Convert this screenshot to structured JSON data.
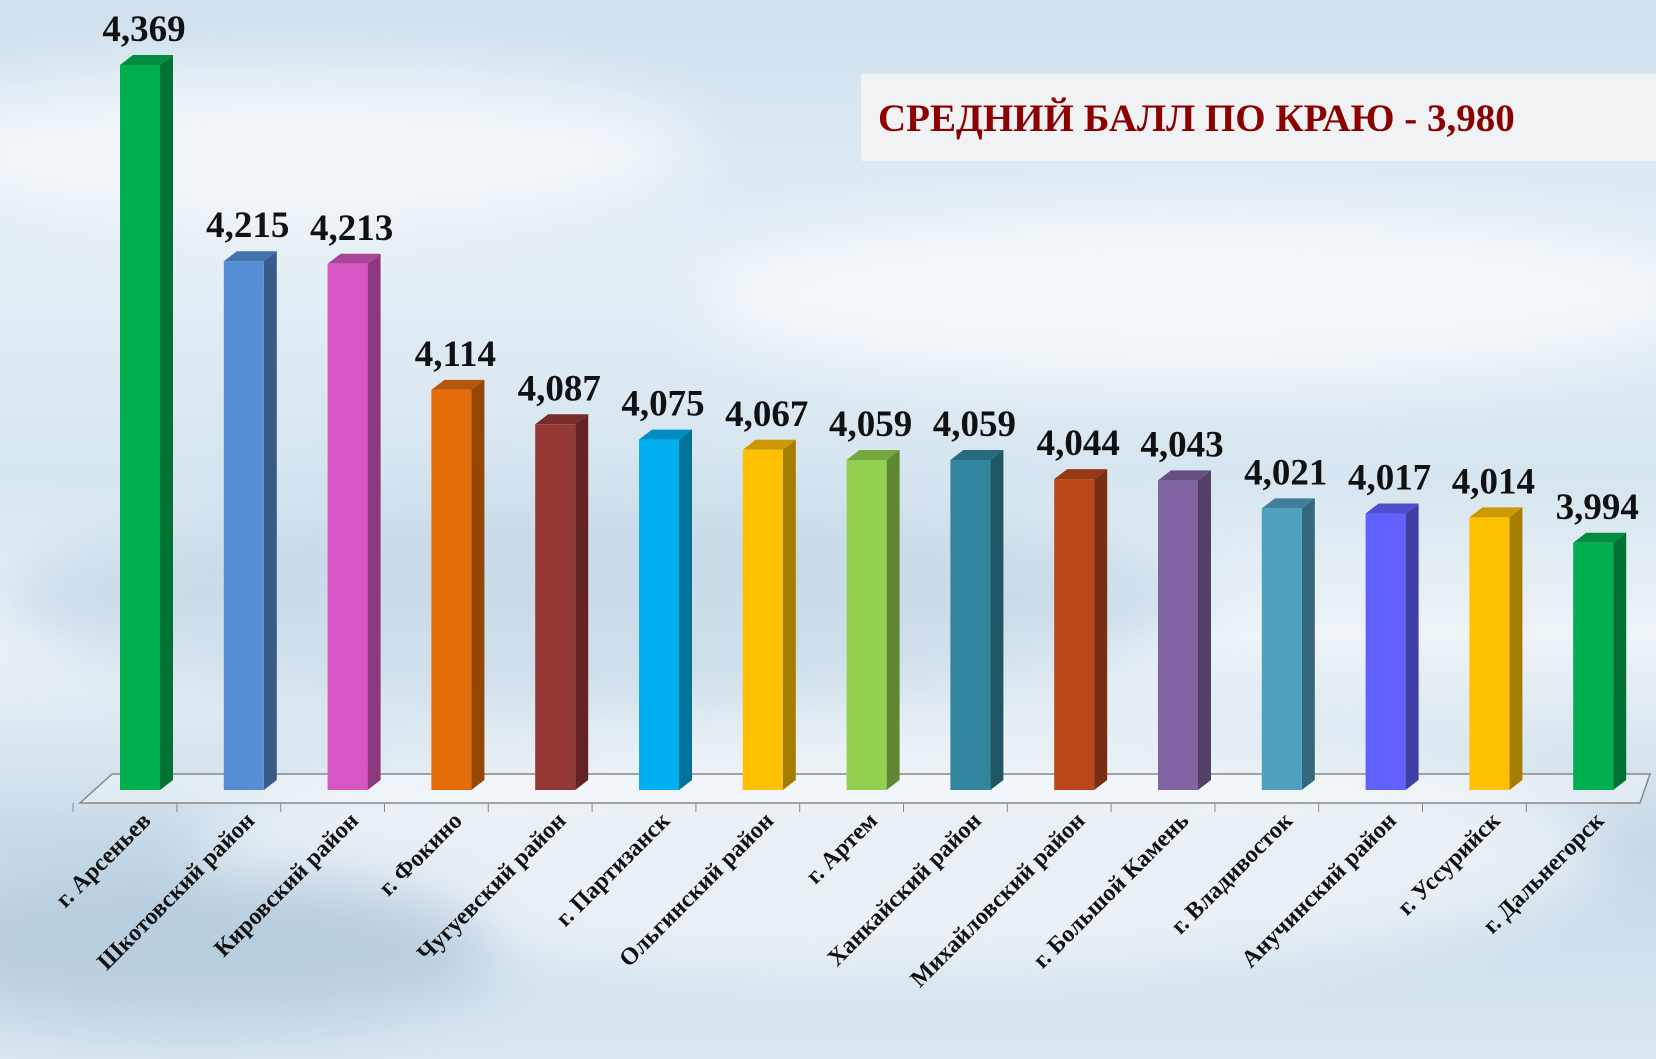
{
  "chart_data": {
    "type": "bar3d",
    "annotation": "СРЕДНИЙ БАЛЛ ПО КРАЮ - 3,980",
    "categories": [
      "г. Арсеньев",
      "Шкотовский район",
      "Кировский район",
      "г. Фокино",
      "Чугуевский район",
      "г. Партизанск",
      "Ольгинский район",
      "г. Артем",
      "Ханкайский район",
      "Михайловский район",
      "г. Большой Камень",
      "г. Владивосток",
      "Анучинский район",
      "г. Уссурийск",
      "г. Дальнегорск"
    ],
    "values": [
      4.369,
      4.215,
      4.213,
      4.114,
      4.087,
      4.075,
      4.067,
      4.059,
      4.059,
      4.044,
      4.043,
      4.021,
      4.017,
      4.014,
      3.994
    ],
    "value_labels": [
      "4,369",
      "4,215",
      "4,213",
      "4,114",
      "4,087",
      "4,075",
      "4,067",
      "4,059",
      "4,059",
      "4,044",
      "4,043",
      "4,021",
      "4,017",
      "4,014",
      "3,994"
    ],
    "colors": [
      "#00b050",
      "#558ed5",
      "#d755c2",
      "#e46c0a",
      "#953735",
      "#00b0f0",
      "#ffc000",
      "#92d050",
      "#31859c",
      "#b9471a",
      "#8064a2",
      "#4f9fbf",
      "#6161ff",
      "#ffc000",
      "#00b050"
    ],
    "ylim": [
      3.8,
      4.42
    ]
  }
}
